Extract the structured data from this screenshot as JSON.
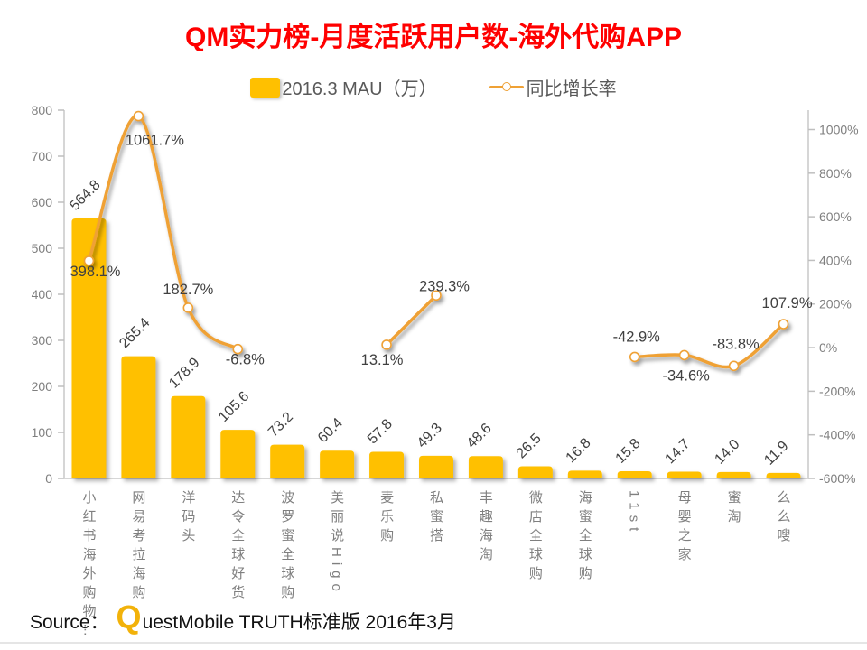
{
  "title": "QM实力榜-月度活跃用户数-海外代购APP",
  "legend": {
    "mau_label": "2016.3 MAU（万）",
    "growth_label": "同比增长率"
  },
  "source": {
    "prefix": "Source：",
    "logo_q": "Q",
    "rest": "uestMobile TRUTH标准版 2016年3月"
  },
  "colors": {
    "title": "#ff0000",
    "bar": "#FFC000",
    "line": "#EFA135",
    "marker_fill": "#ffffff",
    "axis_line": "#d6d6d6",
    "tick": "#bfbfbf",
    "axis_text": "#7f7f7f",
    "data_label": "#404040",
    "category_text": "#7f7f7f"
  },
  "chart_data": {
    "type": "bar",
    "subtype": "combo-bar-line-dual-axis",
    "title": "QM实力榜-月度活跃用户数-海外代购APP",
    "categories": [
      "小红书海外购物…",
      "网易考拉海购",
      "洋码头",
      "达令全球好货",
      "波罗蜜全球购",
      "美丽说Higo",
      "麦乐购",
      "私蜜搭",
      "丰趣海淘",
      "微店全球购",
      "海蜜全球购",
      "11st",
      "母婴之家",
      "蜜淘",
      "么么嗖"
    ],
    "series": [
      {
        "name": "2016.3 MAU（万）",
        "type": "bar",
        "axis": "left",
        "values": [
          564.8,
          265.4,
          178.9,
          105.6,
          73.2,
          60.4,
          57.8,
          49.3,
          48.6,
          26.5,
          16.8,
          15.8,
          14.7,
          14.0,
          11.9
        ],
        "labels": [
          "564.8",
          "265.4",
          "178.9",
          "105.6",
          "73.2",
          "60.4",
          "57.8",
          "49.3",
          "48.6",
          "26.5",
          "16.8",
          "15.8",
          "14.7",
          "14.0",
          "11.9"
        ]
      },
      {
        "name": "同比增长率",
        "type": "line",
        "axis": "right",
        "values": [
          398.1,
          1061.7,
          182.7,
          -6.8,
          null,
          null,
          13.1,
          239.3,
          null,
          null,
          null,
          -42.9,
          -34.6,
          -83.8,
          107.9
        ],
        "labels": [
          "398.1%",
          "1061.7%",
          "182.7%",
          "-6.8%",
          null,
          null,
          "13.1%",
          "239.3%",
          null,
          null,
          null,
          "-42.9%",
          "-34.6%",
          "-83.8%",
          "107.9%"
        ]
      }
    ],
    "left_axis": {
      "min": 0,
      "max": 800,
      "ticks": [
        "0",
        "100",
        "200",
        "300",
        "400",
        "500",
        "600",
        "700",
        "800"
      ]
    },
    "right_axis": {
      "min": -600,
      "ticks": [
        "-600%",
        "-400%",
        "-200%",
        "0%",
        "200%",
        "400%",
        "600%",
        "800%",
        "1000%"
      ]
    },
    "grid": false,
    "legend_position": "top"
  }
}
